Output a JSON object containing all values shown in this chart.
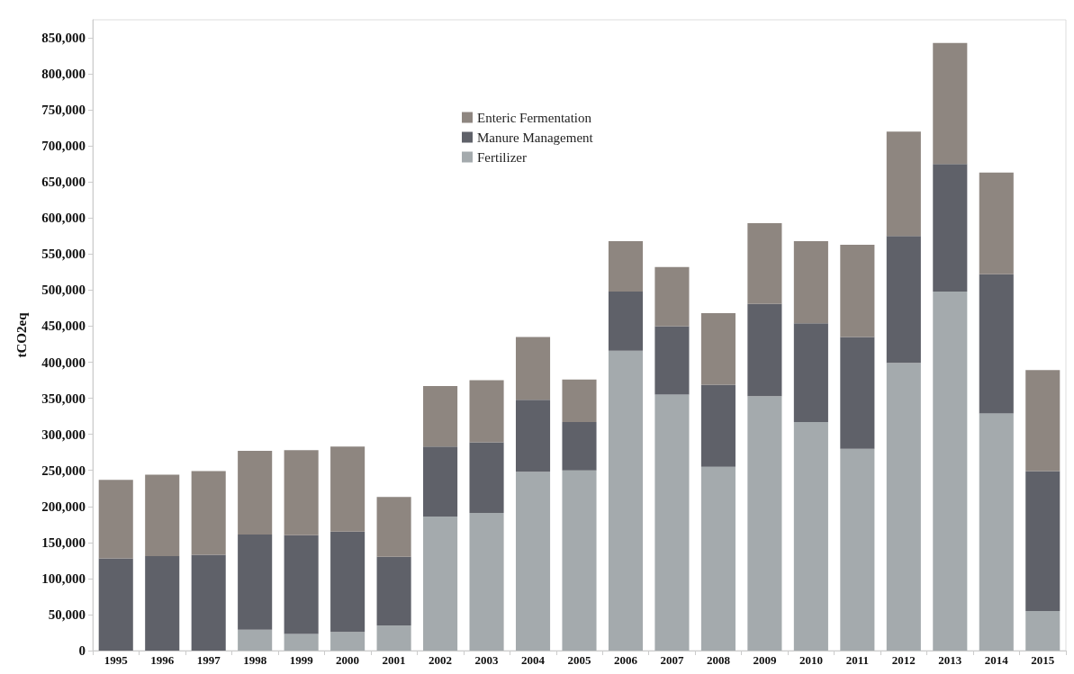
{
  "chart_data": {
    "type": "bar",
    "stacked": true,
    "ylabel": "tCO2eq",
    "categories": [
      "1995",
      "1996",
      "1997",
      "1998",
      "1999",
      "2000",
      "2001",
      "2002",
      "2003",
      "2004",
      "2005",
      "2006",
      "2007",
      "2008",
      "2009",
      "2010",
      "2011",
      "2012",
      "2013",
      "2014",
      "2015"
    ],
    "series": [
      {
        "name": "Fertilizer",
        "color": "#a4aaad",
        "values": [
          0,
          0,
          0,
          29000,
          23000,
          26000,
          35000,
          186000,
          191000,
          248000,
          250000,
          416000,
          355000,
          255000,
          353000,
          317000,
          280000,
          399000,
          498000,
          329000,
          55000
        ]
      },
      {
        "name": "Manure Management",
        "color": "#5f6169",
        "values": [
          128000,
          131000,
          133000,
          132000,
          137000,
          139000,
          95000,
          97000,
          98000,
          100000,
          67000,
          82000,
          95000,
          114000,
          128000,
          137000,
          155000,
          176000,
          177000,
          193000,
          194000
        ]
      },
      {
        "name": "Enteric Fermentation",
        "color": "#8e8680",
        "values": [
          109000,
          113000,
          116000,
          116000,
          118000,
          118000,
          83000,
          84000,
          86000,
          87000,
          59000,
          70000,
          82000,
          99000,
          112000,
          114000,
          128000,
          145000,
          168000,
          141000,
          140000
        ]
      }
    ],
    "ylim": [
      0,
      875000
    ],
    "yticks": [
      0,
      {
        "value": 50000,
        "label": "50,000"
      },
      {
        "value": 100000,
        "label": "100,000"
      },
      {
        "value": 150000,
        "label": "150,000"
      },
      {
        "value": 200000,
        "label": "200,000"
      },
      {
        "value": 250000,
        "label": "250,000"
      },
      {
        "value": 300000,
        "label": "300,000"
      },
      {
        "value": 350000,
        "label": "350,000"
      },
      {
        "value": 400000,
        "label": "400,000"
      },
      {
        "value": 450000,
        "label": "450,000"
      },
      {
        "value": 500000,
        "label": "500,000"
      },
      {
        "value": 550000,
        "label": "550,000"
      },
      {
        "value": 600000,
        "label": "600,000"
      },
      {
        "value": 650000,
        "label": "650,000"
      },
      {
        "value": 700000,
        "label": "700,000"
      },
      {
        "value": 750000,
        "label": "750,000"
      },
      {
        "value": 800000,
        "label": "800,000"
      },
      {
        "value": 850000,
        "label": "850,000"
      }
    ],
    "grid": false,
    "legend": "top"
  }
}
